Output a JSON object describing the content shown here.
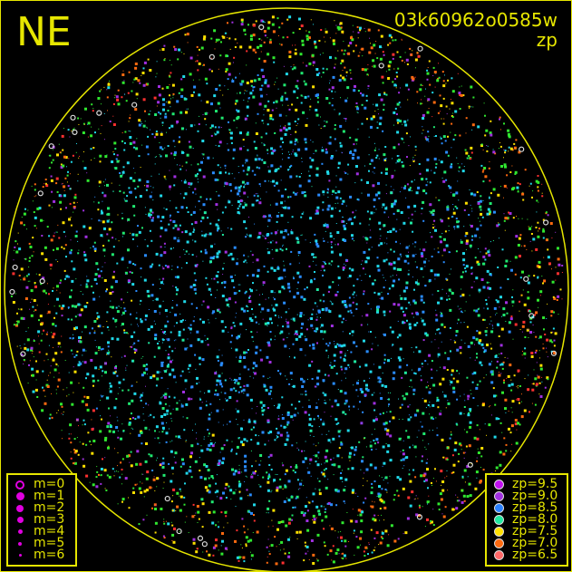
{
  "header": {
    "direction": "NE",
    "filename": "03k60962o0585w",
    "mode": "zp"
  },
  "colors": {
    "frame": "#e6e600",
    "background": "#000000"
  },
  "magnitude_legend": [
    {
      "label": "m=0",
      "size": 10,
      "open": true
    },
    {
      "label": "m=1",
      "size": 9
    },
    {
      "label": "m=2",
      "size": 8
    },
    {
      "label": "m=3",
      "size": 7
    },
    {
      "label": "m=4",
      "size": 5
    },
    {
      "label": "m=5",
      "size": 4
    },
    {
      "label": "m=6",
      "size": 3
    }
  ],
  "magnitude_marker_color": "#e000e0",
  "zp_legend": [
    {
      "label": "zp=9.5",
      "color": "#c010f0"
    },
    {
      "label": "zp=9.0",
      "color": "#a030e0"
    },
    {
      "label": "zp=8.5",
      "color": "#2a80ff"
    },
    {
      "label": "zp=8.0",
      "color": "#20e8a0"
    },
    {
      "label": "zp=7.5",
      "color": "#ffe000"
    },
    {
      "label": "zp=7.0",
      "color": "#ff6a10"
    },
    {
      "label": "zp=6.5",
      "color": "#ff6868"
    }
  ]
}
